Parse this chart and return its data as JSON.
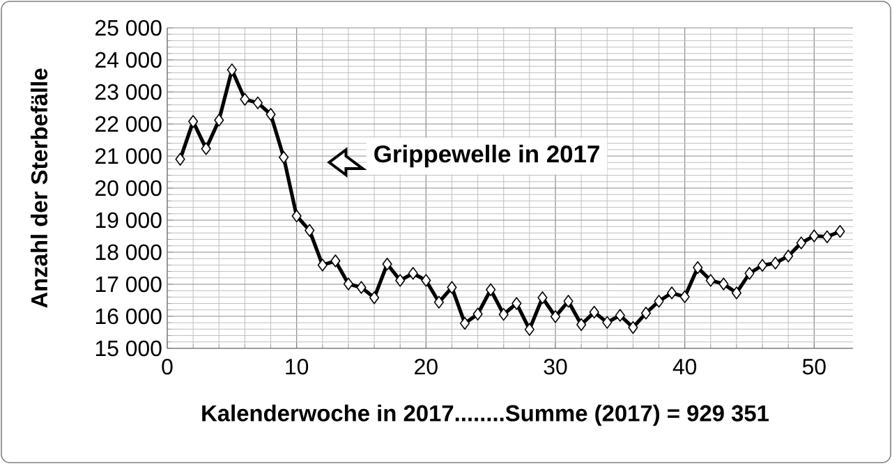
{
  "chart_data": {
    "type": "line",
    "xlabel": "Kalenderwoche in 2017........Summe (2017) = 929 351",
    "ylabel": "Anzahl der Sterbefälle",
    "annotations": [
      "Grippewelle in 2017"
    ],
    "x": [
      1,
      2,
      3,
      4,
      5,
      6,
      7,
      8,
      9,
      10,
      11,
      12,
      13,
      14,
      15,
      16,
      17,
      18,
      19,
      20,
      21,
      22,
      23,
      24,
      25,
      26,
      27,
      28,
      29,
      30,
      31,
      32,
      33,
      34,
      35,
      36,
      37,
      38,
      39,
      40,
      41,
      42,
      43,
      44,
      45,
      46,
      47,
      48,
      49,
      50,
      51,
      52
    ],
    "series": [
      {
        "color": "#000000",
        "values": [
          20900,
          22080,
          21230,
          22120,
          23690,
          22770,
          22660,
          22300,
          20960,
          19130,
          18680,
          17600,
          17730,
          17010,
          16900,
          16580,
          17630,
          17120,
          17340,
          17120,
          16440,
          16900,
          15780,
          16070,
          16830,
          16060,
          16400,
          15590,
          16580,
          15990,
          16470,
          15740,
          16130,
          15810,
          16030,
          15650,
          16100,
          16470,
          16730,
          16610,
          17520,
          17120,
          17010,
          16730,
          17340,
          17590,
          17660,
          17880,
          18290,
          18510,
          18480,
          18650
        ]
      }
    ],
    "xlim": [
      0,
      53
    ],
    "xticks": [
      0,
      10,
      20,
      30,
      40,
      50
    ],
    "ylim": [
      15000,
      25000
    ],
    "yticks": [
      {
        "value": 15000,
        "label": "15 000"
      },
      {
        "value": 16000,
        "label": "16 000"
      },
      {
        "value": 17000,
        "label": "17 000"
      },
      {
        "value": 18000,
        "label": "18 000"
      },
      {
        "value": 19000,
        "label": "19 000"
      },
      {
        "value": 20000,
        "label": "20 000"
      },
      {
        "value": 21000,
        "label": "21 000"
      },
      {
        "value": 22000,
        "label": "22 000"
      },
      {
        "value": 23000,
        "label": "23 000"
      },
      {
        "value": 24000,
        "label": "24 000"
      },
      {
        "value": 25000,
        "label": "25 000"
      }
    ],
    "grid": true,
    "marker": "diamond",
    "line_style": "solid"
  }
}
